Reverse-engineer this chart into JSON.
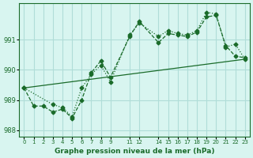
{
  "title": "Graphe pression niveau de la mer (hPa)",
  "bg_color": "#d8f5f0",
  "grid_color": "#b0ddd8",
  "line_color": "#1a6b2a",
  "ylim": [
    987.8,
    992.2
  ],
  "yticks": [
    988,
    989,
    990,
    991
  ],
  "line1_x": [
    0,
    1,
    2,
    3,
    4,
    5,
    6,
    7,
    8,
    9,
    11,
    12,
    14,
    15,
    16,
    17,
    18,
    19,
    20,
    21,
    22,
    23
  ],
  "line1_y": [
    989.4,
    988.8,
    988.8,
    988.6,
    988.7,
    988.4,
    989.0,
    989.9,
    990.3,
    989.75,
    991.1,
    991.6,
    990.9,
    991.2,
    991.15,
    991.1,
    991.25,
    991.75,
    991.8,
    990.8,
    990.45,
    990.4
  ],
  "line2_x": [
    0,
    3,
    4,
    5,
    6,
    7,
    8,
    9,
    11,
    12,
    14,
    15,
    16,
    17,
    18,
    19,
    20,
    21,
    22,
    23
  ],
  "line2_y": [
    989.4,
    988.85,
    988.75,
    988.45,
    989.4,
    989.85,
    990.15,
    989.6,
    991.15,
    991.55,
    991.1,
    991.3,
    991.2,
    991.15,
    991.3,
    991.9,
    991.85,
    990.75,
    990.85,
    990.35
  ],
  "line3_x": [
    0,
    23
  ],
  "line3_y": [
    989.4,
    990.35
  ],
  "xtick_positions": [
    0,
    1,
    2,
    3,
    4,
    5,
    6,
    7,
    8,
    9,
    11,
    12,
    14,
    15,
    16,
    17,
    18,
    19,
    20,
    21,
    22,
    23
  ],
  "xtick_labels": [
    "0",
    "1",
    "2",
    "3",
    "4",
    "5",
    "6",
    "7",
    "8",
    "9",
    "11",
    "12",
    "14",
    "15",
    "16",
    "17",
    "18",
    "19",
    "20",
    "21",
    "22",
    "23"
  ]
}
